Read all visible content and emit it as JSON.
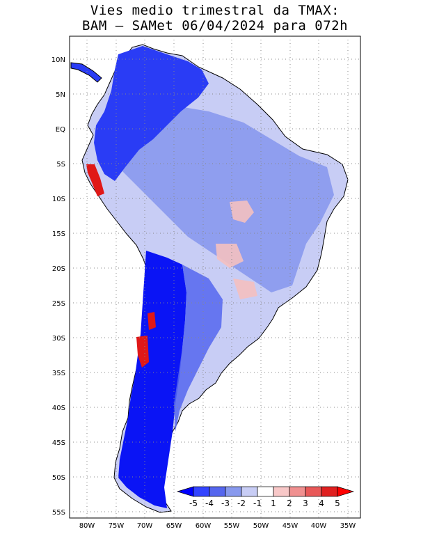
{
  "title": {
    "line1": "Vies medio trimestral da TMAX:",
    "line2": "BAM – SAMet 06/04/2024  para 072h"
  },
  "map": {
    "lat_labels": [
      "10N",
      "5N",
      "EQ",
      "5S",
      "10S",
      "15S",
      "20S",
      "25S",
      "30S",
      "35S",
      "40S",
      "45S",
      "50S",
      "55S"
    ],
    "lon_labels": [
      "80W",
      "75W",
      "70W",
      "65W",
      "60W",
      "55W",
      "50W",
      "45W",
      "40W",
      "35W"
    ],
    "lat_range": [
      -56,
      14
    ],
    "lon_range": [
      -85,
      -34
    ],
    "grid": "dotted"
  },
  "colorbar": {
    "labels": [
      "-5",
      "-4",
      "-3",
      "-2",
      "-1",
      "1",
      "2",
      "3",
      "4",
      "5"
    ],
    "colors": [
      "#0000ff",
      "#3344ff",
      "#5566ee",
      "#8899ee",
      "#c8cdf5",
      "#ffffff",
      "#f8c8c8",
      "#f09090",
      "#e85858",
      "#e02020",
      "#ff0000"
    ]
  },
  "palette": {
    "land_base": "#c8cdf5",
    "strong_blue": "#0a14f5",
    "mid_blue": "#5566ee",
    "light_blue": "#8899ee",
    "warm": "#f0b0b0",
    "hot": "#e01818"
  }
}
